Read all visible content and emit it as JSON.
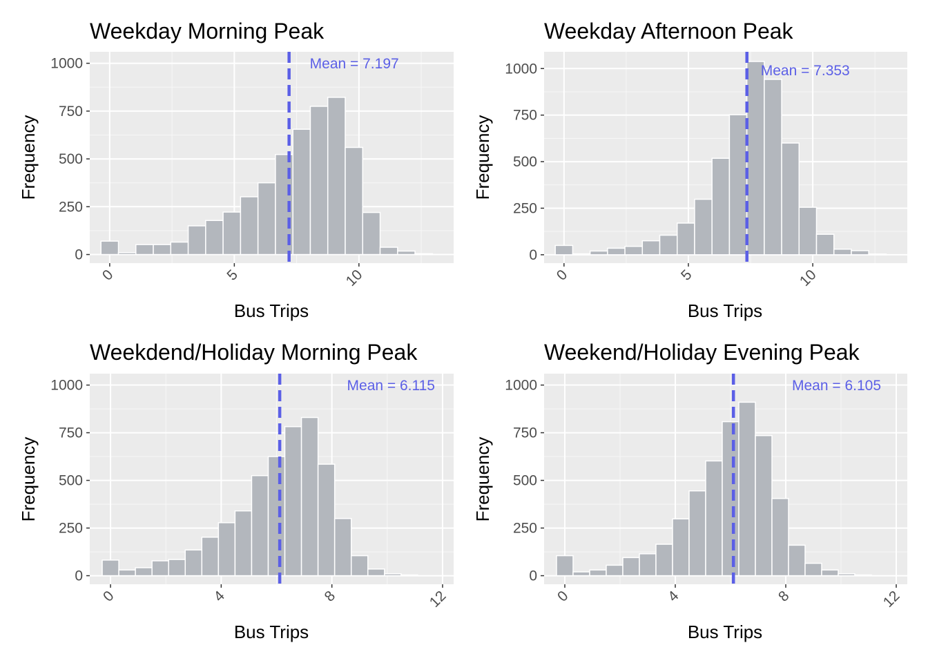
{
  "chart_data": [
    {
      "type": "bar",
      "title": "Weekday Morning Peak",
      "xlabel": "Bus Trips",
      "ylabel": "Frequency",
      "bin_width": 0.7,
      "bins": [
        {
          "x": 0.0,
          "count": 70
        },
        {
          "x": 0.7,
          "count": 10
        },
        {
          "x": 1.4,
          "count": 52
        },
        {
          "x": 2.1,
          "count": 52
        },
        {
          "x": 2.8,
          "count": 65
        },
        {
          "x": 3.5,
          "count": 150
        },
        {
          "x": 4.2,
          "count": 178
        },
        {
          "x": 4.9,
          "count": 222
        },
        {
          "x": 5.6,
          "count": 302
        },
        {
          "x": 6.3,
          "count": 375
        },
        {
          "x": 7.0,
          "count": 523
        },
        {
          "x": 7.7,
          "count": 655
        },
        {
          "x": 8.4,
          "count": 775
        },
        {
          "x": 9.1,
          "count": 822
        },
        {
          "x": 9.8,
          "count": 560
        },
        {
          "x": 10.5,
          "count": 220
        },
        {
          "x": 11.2,
          "count": 38
        },
        {
          "x": 11.9,
          "count": 18
        },
        {
          "x": 12.6,
          "count": 4
        }
      ],
      "mean": 7.197,
      "mean_label": "Mean = 7.197",
      "xlim": [
        -0.8,
        13.8
      ],
      "ylim": [
        -45,
        1060
      ],
      "x_ticks": [
        0,
        5,
        10
      ],
      "y_ticks": [
        0,
        250,
        500,
        750,
        1000
      ],
      "y_tick_labels": [
        "0",
        "250",
        "500",
        "750",
        "1000"
      ],
      "bar_color": "#b3b7bd",
      "mean_color": "#5b5fe6",
      "panel_bg": "#ebebeb"
    },
    {
      "type": "bar",
      "title": "Weekday Afternoon Peak",
      "xlabel": "Bus Trips",
      "ylabel": "Frequency",
      "bin_width": 0.7,
      "bins": [
        {
          "x": 0.0,
          "count": 50
        },
        {
          "x": 0.7,
          "count": 5
        },
        {
          "x": 1.4,
          "count": 20
        },
        {
          "x": 2.1,
          "count": 35
        },
        {
          "x": 2.8,
          "count": 45
        },
        {
          "x": 3.5,
          "count": 75
        },
        {
          "x": 4.2,
          "count": 105
        },
        {
          "x": 4.9,
          "count": 170
        },
        {
          "x": 5.6,
          "count": 298
        },
        {
          "x": 6.3,
          "count": 518
        },
        {
          "x": 7.0,
          "count": 752
        },
        {
          "x": 7.7,
          "count": 1038
        },
        {
          "x": 8.4,
          "count": 942
        },
        {
          "x": 9.1,
          "count": 600
        },
        {
          "x": 9.8,
          "count": 255
        },
        {
          "x": 10.5,
          "count": 110
        },
        {
          "x": 11.2,
          "count": 30
        },
        {
          "x": 11.9,
          "count": 22
        },
        {
          "x": 12.6,
          "count": 4
        }
      ],
      "mean": 7.353,
      "mean_label": "Mean = 7.353",
      "xlim": [
        -0.8,
        13.8
      ],
      "ylim": [
        -45,
        1090
      ],
      "x_ticks": [
        0,
        5,
        10
      ],
      "y_ticks": [
        0,
        250,
        500,
        750,
        1000
      ],
      "y_tick_labels": [
        "0",
        "250",
        "500",
        "750",
        "1000"
      ],
      "bar_color": "#b3b7bd",
      "mean_color": "#5b5fe6",
      "panel_bg": "#ebebeb"
    },
    {
      "type": "bar",
      "title": "Weekdend/Holiday Morning Peak",
      "xlabel": "Bus Trips",
      "ylabel": "Frequency",
      "bin_width": 0.6,
      "bins": [
        {
          "x": 0.0,
          "count": 82
        },
        {
          "x": 0.6,
          "count": 30
        },
        {
          "x": 1.2,
          "count": 42
        },
        {
          "x": 1.8,
          "count": 78
        },
        {
          "x": 2.4,
          "count": 85
        },
        {
          "x": 3.0,
          "count": 135
        },
        {
          "x": 3.6,
          "count": 202
        },
        {
          "x": 4.2,
          "count": 278
        },
        {
          "x": 4.8,
          "count": 340
        },
        {
          "x": 5.4,
          "count": 525
        },
        {
          "x": 6.0,
          "count": 625
        },
        {
          "x": 6.6,
          "count": 782
        },
        {
          "x": 7.2,
          "count": 830
        },
        {
          "x": 7.8,
          "count": 585
        },
        {
          "x": 8.4,
          "count": 300
        },
        {
          "x": 9.0,
          "count": 105
        },
        {
          "x": 9.6,
          "count": 35
        },
        {
          "x": 10.2,
          "count": 10
        },
        {
          "x": 10.8,
          "count": 4
        }
      ],
      "mean": 6.115,
      "mean_label": "Mean = 6.115",
      "xlim": [
        -0.75,
        12.4
      ],
      "ylim": [
        -45,
        1060
      ],
      "x_ticks": [
        0,
        4,
        8,
        12
      ],
      "y_ticks": [
        0,
        250,
        500,
        750,
        1000
      ],
      "y_tick_labels": [
        "0",
        "250",
        "500",
        "750",
        "1000"
      ],
      "bar_color": "#b3b7bd",
      "mean_color": "#5b5fe6",
      "panel_bg": "#ebebeb"
    },
    {
      "type": "bar",
      "title": "Weekend/Holiday Evening Peak",
      "xlabel": "Bus Trips",
      "ylabel": "Frequency",
      "bin_width": 0.6,
      "bins": [
        {
          "x": 0.0,
          "count": 105
        },
        {
          "x": 0.6,
          "count": 20
        },
        {
          "x": 1.2,
          "count": 30
        },
        {
          "x": 1.8,
          "count": 55
        },
        {
          "x": 2.4,
          "count": 95
        },
        {
          "x": 3.0,
          "count": 115
        },
        {
          "x": 3.6,
          "count": 165
        },
        {
          "x": 4.2,
          "count": 298
        },
        {
          "x": 4.8,
          "count": 445
        },
        {
          "x": 5.4,
          "count": 602
        },
        {
          "x": 6.0,
          "count": 808
        },
        {
          "x": 6.6,
          "count": 910
        },
        {
          "x": 7.2,
          "count": 735
        },
        {
          "x": 7.8,
          "count": 405
        },
        {
          "x": 8.4,
          "count": 160
        },
        {
          "x": 9.0,
          "count": 65
        },
        {
          "x": 9.6,
          "count": 30
        },
        {
          "x": 10.2,
          "count": 10
        },
        {
          "x": 10.8,
          "count": 4
        }
      ],
      "mean": 6.105,
      "mean_label": "Mean = 6.105",
      "xlim": [
        -0.75,
        12.4
      ],
      "ylim": [
        -45,
        1060
      ],
      "x_ticks": [
        0,
        4,
        8,
        12
      ],
      "y_ticks": [
        0,
        250,
        500,
        750,
        1000
      ],
      "y_tick_labels": [
        "0",
        "250",
        "500",
        "750",
        "1000"
      ],
      "bar_color": "#b3b7bd",
      "mean_color": "#5b5fe6",
      "panel_bg": "#ebebeb"
    }
  ]
}
